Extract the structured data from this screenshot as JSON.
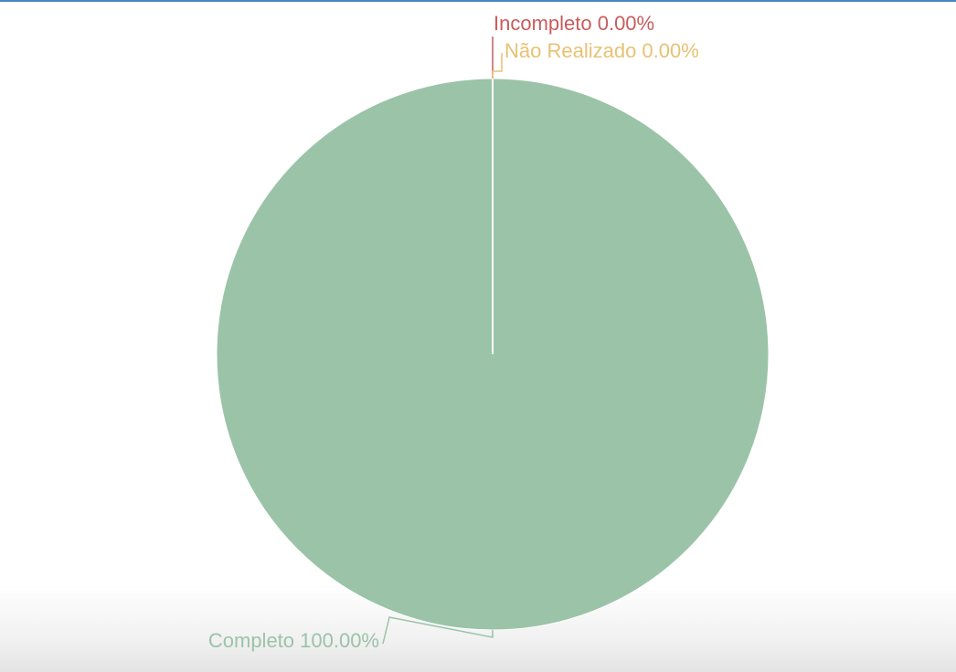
{
  "chart_data": {
    "type": "pie",
    "slices": [
      {
        "label": "Completo",
        "value": 100.0,
        "percent_text": "100.00%",
        "color": "#9bc3a8"
      },
      {
        "label": "Incompleto",
        "value": 0.0,
        "percent_text": "0.00%",
        "color": "#c95c5c"
      },
      {
        "label": "Não Realizado",
        "value": 0.0,
        "percent_text": "0.00%",
        "color": "#e8c173"
      }
    ],
    "legend": "none"
  },
  "labels": {
    "completo": "Completo 100.00%",
    "incompleto": "Incompleto 0.00%",
    "nao_realizado": "Não Realizado 0.00%"
  },
  "colors": {
    "top_rule": "#4a86c5"
  }
}
